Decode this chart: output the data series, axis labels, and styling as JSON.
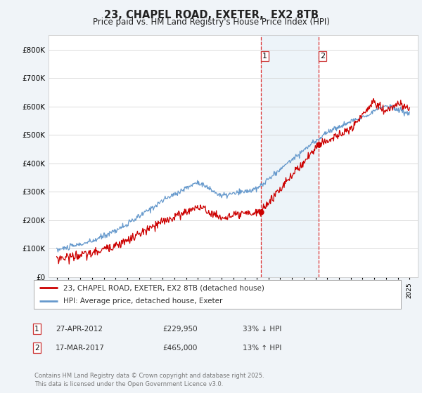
{
  "title_line1": "23, CHAPEL ROAD, EXETER,  EX2 8TB",
  "title_line2": "Price paid vs. HM Land Registry's House Price Index (HPI)",
  "legend_red": "23, CHAPEL ROAD, EXETER, EX2 8TB (detached house)",
  "legend_blue": "HPI: Average price, detached house, Exeter",
  "transaction1_label": "1",
  "transaction1_date": "27-APR-2012",
  "transaction1_price": "£229,950",
  "transaction1_hpi": "33% ↓ HPI",
  "transaction2_label": "2",
  "transaction2_date": "17-MAR-2017",
  "transaction2_price": "£465,000",
  "transaction2_hpi": "13% ↑ HPI",
  "transaction1_price_val": 229950,
  "transaction2_price_val": 465000,
  "footnote": "Contains HM Land Registry data © Crown copyright and database right 2025.\nThis data is licensed under the Open Government Licence v3.0.",
  "ylim_min": 0,
  "ylim_max": 850000,
  "background_color": "#f0f4f8",
  "plot_bg_color": "#ffffff",
  "red_color": "#cc0000",
  "blue_color": "#6699cc",
  "vspan_color": "#cce0f0",
  "grid_color": "#cccccc",
  "spine_color": "#cccccc",
  "title_color": "#222222",
  "text_color": "#333333",
  "footnote_color": "#777777"
}
